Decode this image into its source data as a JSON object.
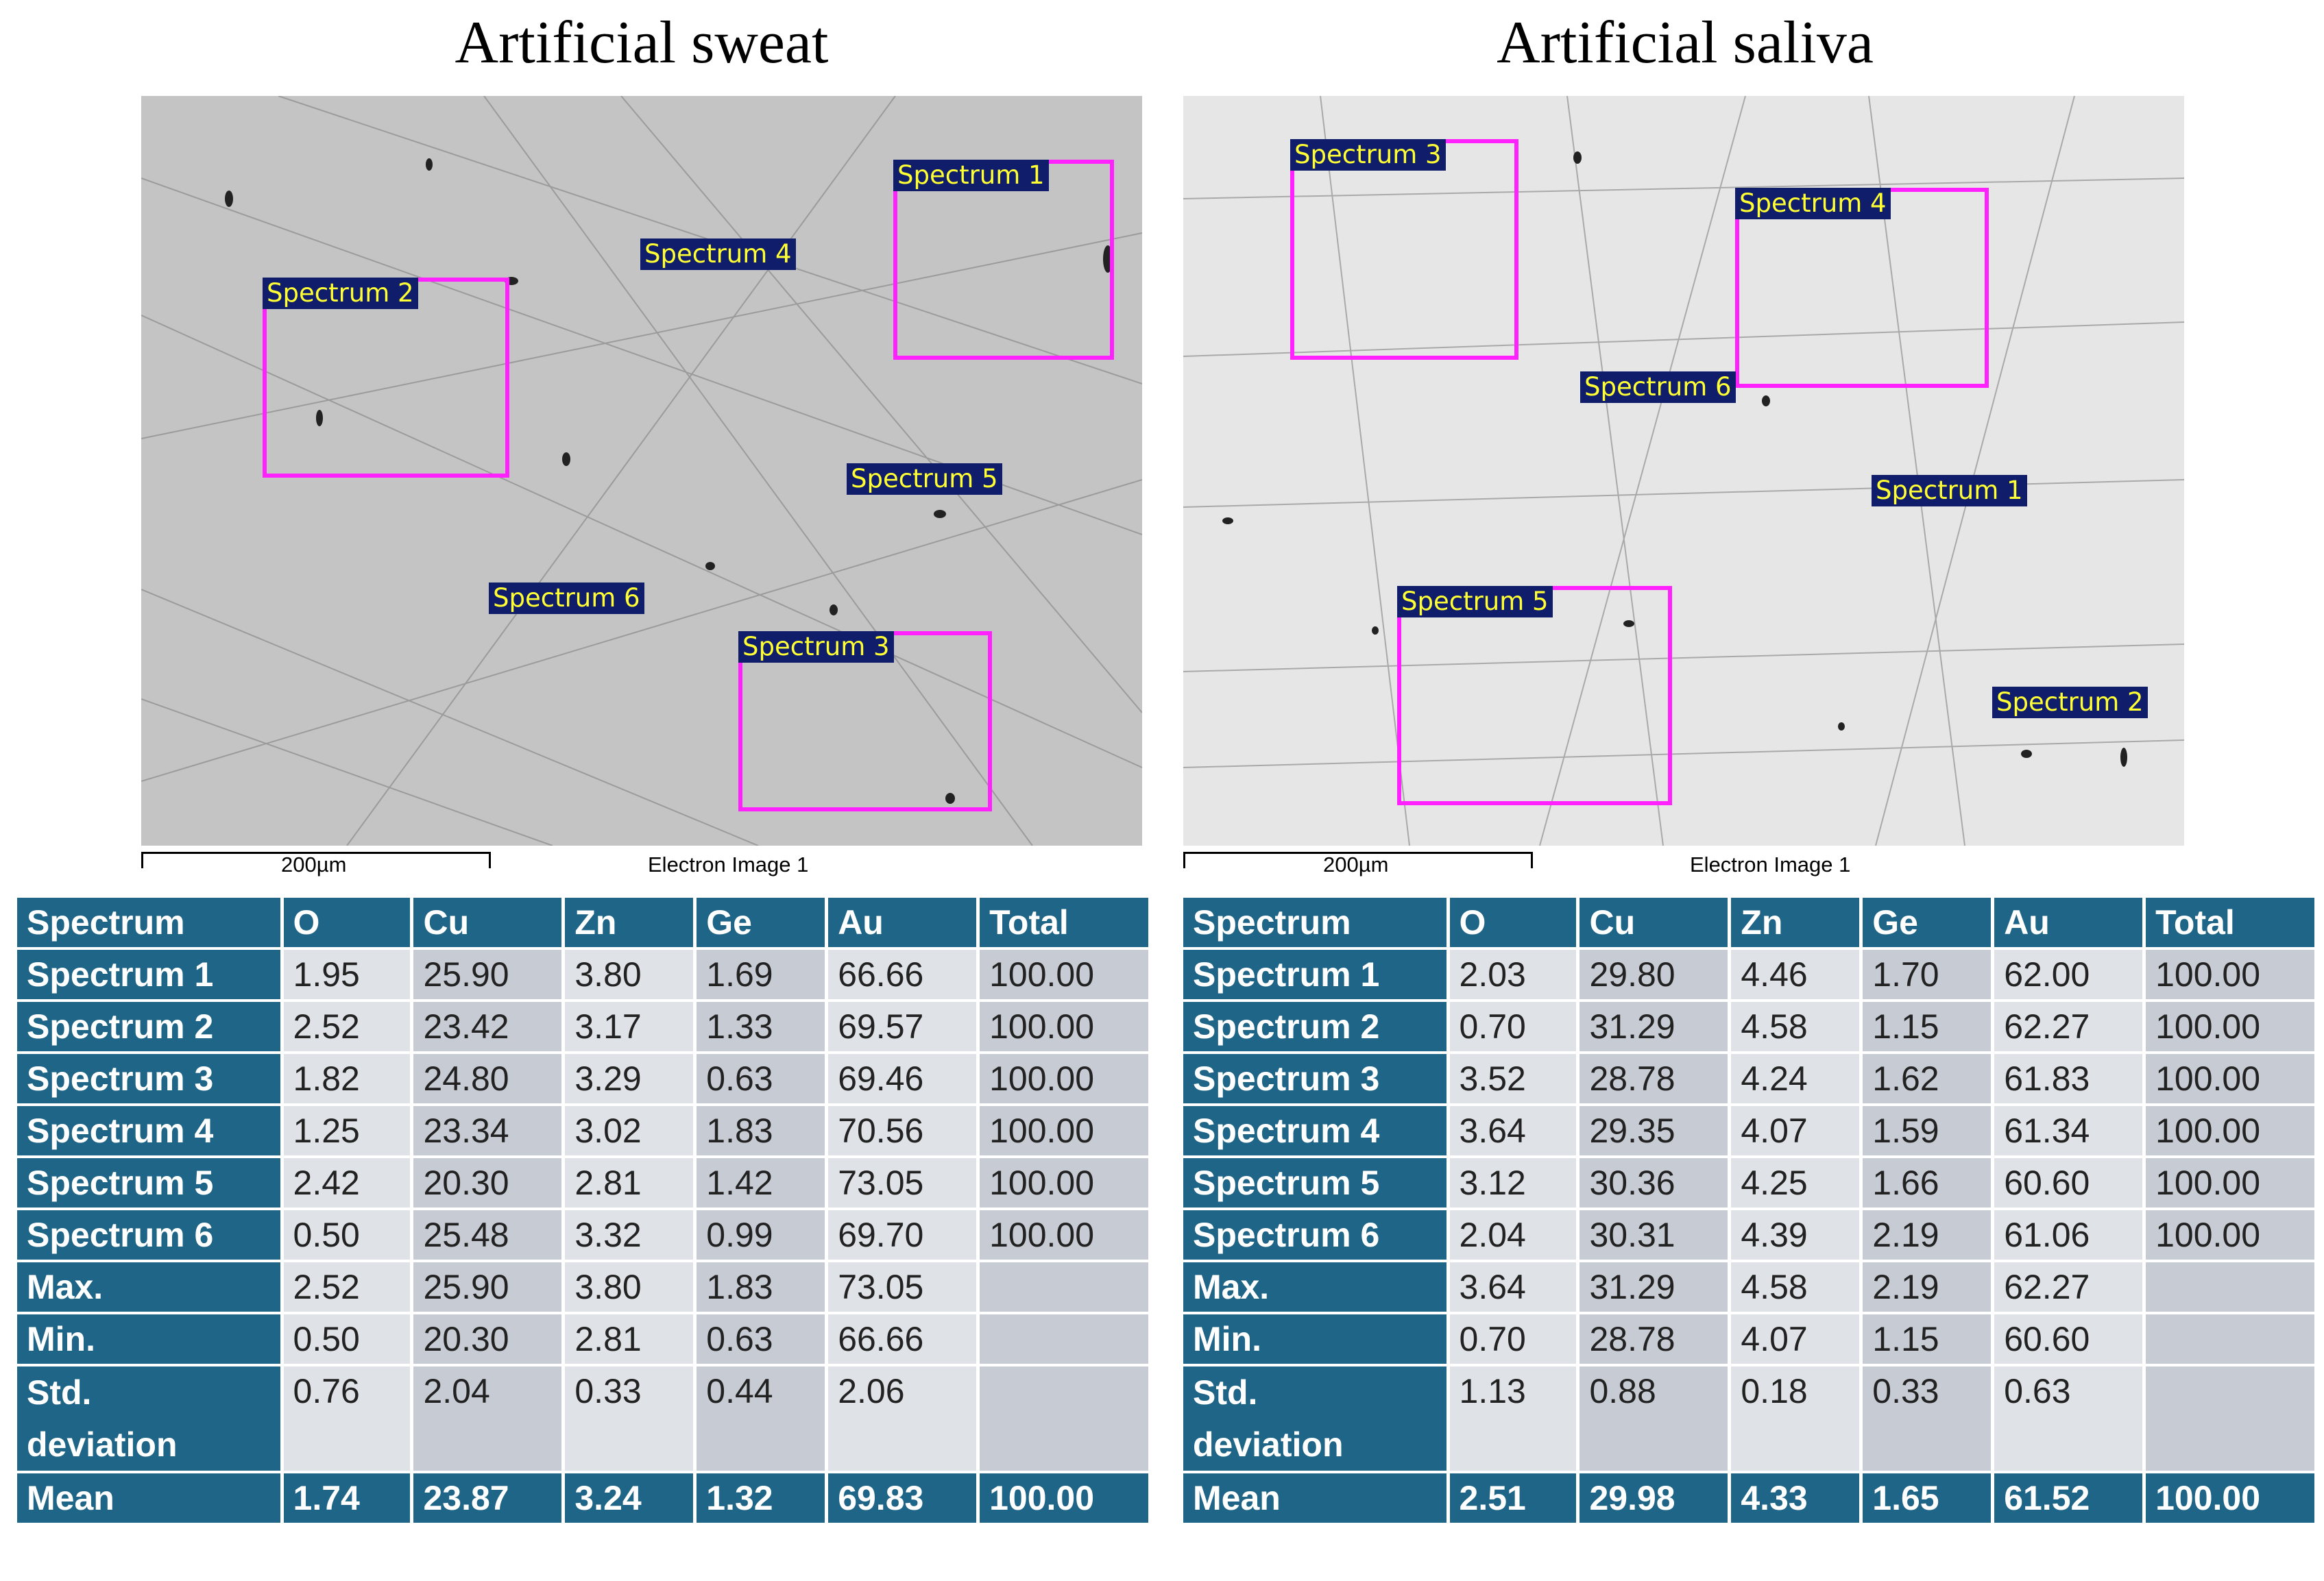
{
  "left": {
    "title": "Artificial sweat",
    "labels": [
      "Spectrum 1",
      "Spectrum 2",
      "Spectrum 3",
      "Spectrum 4",
      "Spectrum 5",
      "Spectrum 6"
    ],
    "scale": "200µm",
    "image_label": "Electron Image 1",
    "table": {
      "headers": [
        "Spectrum",
        "O",
        "Cu",
        "Zn",
        "Ge",
        "Au",
        "Total"
      ],
      "rows": [
        {
          "name": "Spectrum 1",
          "vals": [
            "1.95",
            "25.90",
            "3.80",
            "1.69",
            "66.66",
            "100.00"
          ]
        },
        {
          "name": "Spectrum 2",
          "vals": [
            "2.52",
            "23.42",
            "3.17",
            "1.33",
            "69.57",
            "100.00"
          ]
        },
        {
          "name": "Spectrum 3",
          "vals": [
            "1.82",
            "24.80",
            "3.29",
            "0.63",
            "69.46",
            "100.00"
          ]
        },
        {
          "name": "Spectrum 4",
          "vals": [
            "1.25",
            "23.34",
            "3.02",
            "1.83",
            "70.56",
            "100.00"
          ]
        },
        {
          "name": "Spectrum 5",
          "vals": [
            "2.42",
            "20.30",
            "2.81",
            "1.42",
            "73.05",
            "100.00"
          ]
        },
        {
          "name": "Spectrum 6",
          "vals": [
            "0.50",
            "25.48",
            "3.32",
            "0.99",
            "69.70",
            "100.00"
          ]
        }
      ],
      "max": {
        "name": "Max.",
        "vals": [
          "2.52",
          "25.90",
          "3.80",
          "1.83",
          "73.05",
          ""
        ]
      },
      "min": {
        "name": "Min.",
        "vals": [
          "0.50",
          "20.30",
          "2.81",
          "0.63",
          "66.66",
          ""
        ]
      },
      "std": {
        "name1": "Std.",
        "name2": "deviation",
        "vals": [
          "0.76",
          "2.04",
          "0.33",
          "0.44",
          "2.06",
          ""
        ]
      },
      "mean": {
        "name": "Mean",
        "vals": [
          "1.74",
          "23.87",
          "3.24",
          "1.32",
          "69.83",
          "100.00"
        ]
      }
    }
  },
  "right": {
    "title": "Artificial saliva",
    "labels": [
      "Spectrum 1",
      "Spectrum 2",
      "Spectrum 3",
      "Spectrum 4",
      "Spectrum 5",
      "Spectrum 6"
    ],
    "scale": "200µm",
    "image_label": "Electron Image 1",
    "table": {
      "headers": [
        "Spectrum",
        "O",
        "Cu",
        "Zn",
        "Ge",
        "Au",
        "Total"
      ],
      "rows": [
        {
          "name": "Spectrum 1",
          "vals": [
            "2.03",
            "29.80",
            "4.46",
            "1.70",
            "62.00",
            "100.00"
          ]
        },
        {
          "name": "Spectrum 2",
          "vals": [
            "0.70",
            "31.29",
            "4.58",
            "1.15",
            "62.27",
            "100.00"
          ]
        },
        {
          "name": "Spectrum 3",
          "vals": [
            "3.52",
            "28.78",
            "4.24",
            "1.62",
            "61.83",
            "100.00"
          ]
        },
        {
          "name": "Spectrum 4",
          "vals": [
            "3.64",
            "29.35",
            "4.07",
            "1.59",
            "61.34",
            "100.00"
          ]
        },
        {
          "name": "Spectrum 5",
          "vals": [
            "3.12",
            "30.36",
            "4.25",
            "1.66",
            "60.60",
            "100.00"
          ]
        },
        {
          "name": "Spectrum 6",
          "vals": [
            "2.04",
            "30.31",
            "4.39",
            "2.19",
            "61.06",
            "100.00"
          ]
        }
      ],
      "max": {
        "name": "Max.",
        "vals": [
          "3.64",
          "31.29",
          "4.58",
          "2.19",
          "62.27",
          ""
        ]
      },
      "min": {
        "name": "Min.",
        "vals": [
          "0.70",
          "28.78",
          "4.07",
          "1.15",
          "60.60",
          ""
        ]
      },
      "std": {
        "name1": "Std.",
        "name2": "deviation",
        "vals": [
          "1.13",
          "0.88",
          "0.18",
          "0.33",
          "0.63",
          ""
        ]
      },
      "mean": {
        "name": "Mean",
        "vals": [
          "2.51",
          "29.98",
          "4.33",
          "1.65",
          "61.52",
          "100.00"
        ]
      }
    }
  }
}
